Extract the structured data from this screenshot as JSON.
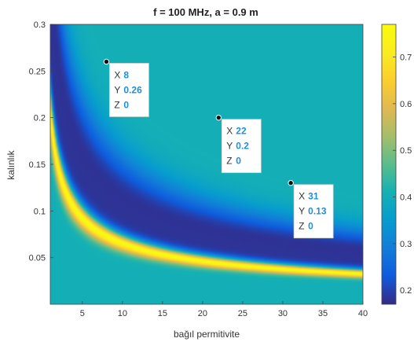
{
  "chart_data": {
    "type": "heatmap",
    "title": "f = 100 MHz, a = 0.9 m",
    "xlabel": "bağıl permitivite",
    "ylabel": "kalınlık",
    "xlim": [
      1,
      40
    ],
    "ylim": [
      0,
      0.3
    ],
    "x_ticks": [
      5,
      10,
      15,
      20,
      25,
      30,
      35,
      40
    ],
    "y_ticks": [
      0.05,
      0.1,
      0.15,
      0.2,
      0.25,
      0.3
    ],
    "x_tick_labels": [
      "5",
      "10",
      "15",
      "20",
      "25",
      "30",
      "35",
      "40"
    ],
    "y_tick_labels": [
      "0.05",
      "0.1",
      "0.15",
      "0.2",
      "0.25",
      "0.3"
    ],
    "colorbar": {
      "range": [
        0.17,
        0.77
      ],
      "ticks": [
        0.2,
        0.3,
        0.4,
        0.5,
        0.6,
        0.7
      ],
      "tick_labels": [
        "0.2",
        "0.3",
        "0.4",
        "0.5",
        "0.6",
        "0.7"
      ],
      "colormap": "parula"
    },
    "ridge_model": {
      "ridge_constant": 2.1,
      "ridge_peak_value": 0.77,
      "background_value": 0.405,
      "trough_value": 0.18
    },
    "datatips": [
      {
        "x": 8,
        "y": 0.26,
        "z": 0,
        "x_label": "X",
        "y_label": "Y",
        "z_label": "Z",
        "x_text": "8",
        "y_text": "0.26",
        "z_text": "0"
      },
      {
        "x": 22,
        "y": 0.2,
        "z": 0,
        "x_label": "X",
        "y_label": "Y",
        "z_label": "Z",
        "x_text": "22",
        "y_text": "0.2",
        "z_text": "0"
      },
      {
        "x": 31,
        "y": 0.13,
        "z": 0,
        "x_label": "X",
        "y_label": "Y",
        "z_label": "Z",
        "x_text": "31",
        "y_text": "0.13",
        "z_text": "0"
      }
    ],
    "colors": {
      "datatip_value": "#1f8fd6",
      "datatip_label": "#333333",
      "axis": "#333333"
    }
  }
}
